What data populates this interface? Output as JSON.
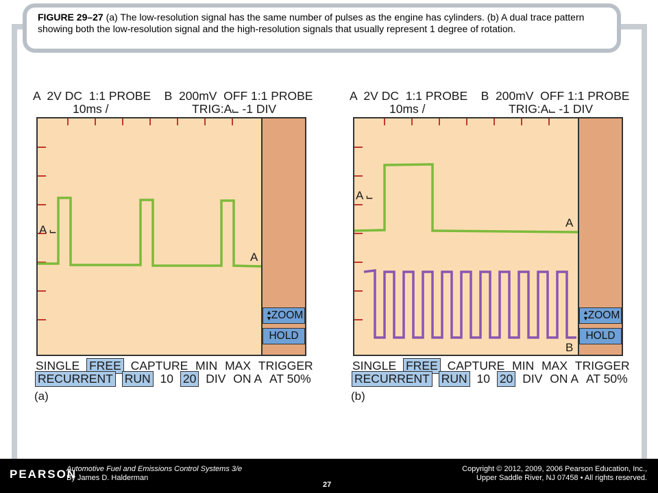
{
  "caption": {
    "figure_label": "FIGURE 29–27",
    "text": " (a) The low-resolution signal has the same number of pulses as the engine has cylinders. (b) A dual trace pattern showing both the low-resolution signal and the high-resolution signals that usually represent 1 degree of rotation."
  },
  "scope_a": {
    "header_line1": "A  2V DC  1:1 PROBE    B  200mV  OFF 1:1 PROBE",
    "header_timebase": "10ms /",
    "header_trigger": "TRIG:A⨽ -1 DIV",
    "zoom_label": "ZOOM",
    "hold_label": "HOLD",
    "trace_a_label": "A",
    "trigger_marker": "A ⨽",
    "row1": [
      "SINGLE",
      "FREE",
      "CAPTURE",
      "MIN",
      "MAX",
      "TRIGGER"
    ],
    "row2": [
      "RECURRENT",
      "RUN",
      "10",
      "20",
      "DIV",
      "ON A",
      "AT 50%"
    ],
    "panel_label": "(a)",
    "colors": {
      "trace_a": "#7dba3c",
      "screen": "#fbdcb2",
      "sidebar": "#e3a67c",
      "button": "#6fa1d6"
    }
  },
  "scope_b": {
    "header_line1": "A  2V DC  1:1 PROBE    B  200mV  OFF 1:1 PROBE",
    "header_timebase": "10ms /",
    "header_trigger": "TRIG:A⨽ -1 DIV",
    "zoom_label": "ZOOM",
    "hold_label": "HOLD",
    "trace_a_label": "A",
    "trace_b_label": "B",
    "trigger_marker": "A ⨽",
    "row1": [
      "SINGLE",
      "FREE",
      "CAPTURE",
      "MIN",
      "MAX",
      "TRIGGER"
    ],
    "row2": [
      "RECURRENT",
      "RUN",
      "10",
      "20",
      "DIV",
      "ON A",
      "AT 50%"
    ],
    "panel_label": "(b)",
    "colors": {
      "trace_a": "#7dba3c",
      "trace_b": "#8a55b0"
    }
  },
  "footer": {
    "logo": "PEARSON",
    "book_title": "Automotive Fuel and Emissions Control Systems 3/e",
    "author": "By James D. Halderman",
    "copyright_line1": "Copyright © 2012, 2009, 2006 Pearson Education, Inc.,",
    "copyright_line2": "Upper Saddle River, NJ 07458 • All rights reserved.",
    "page": "27"
  }
}
